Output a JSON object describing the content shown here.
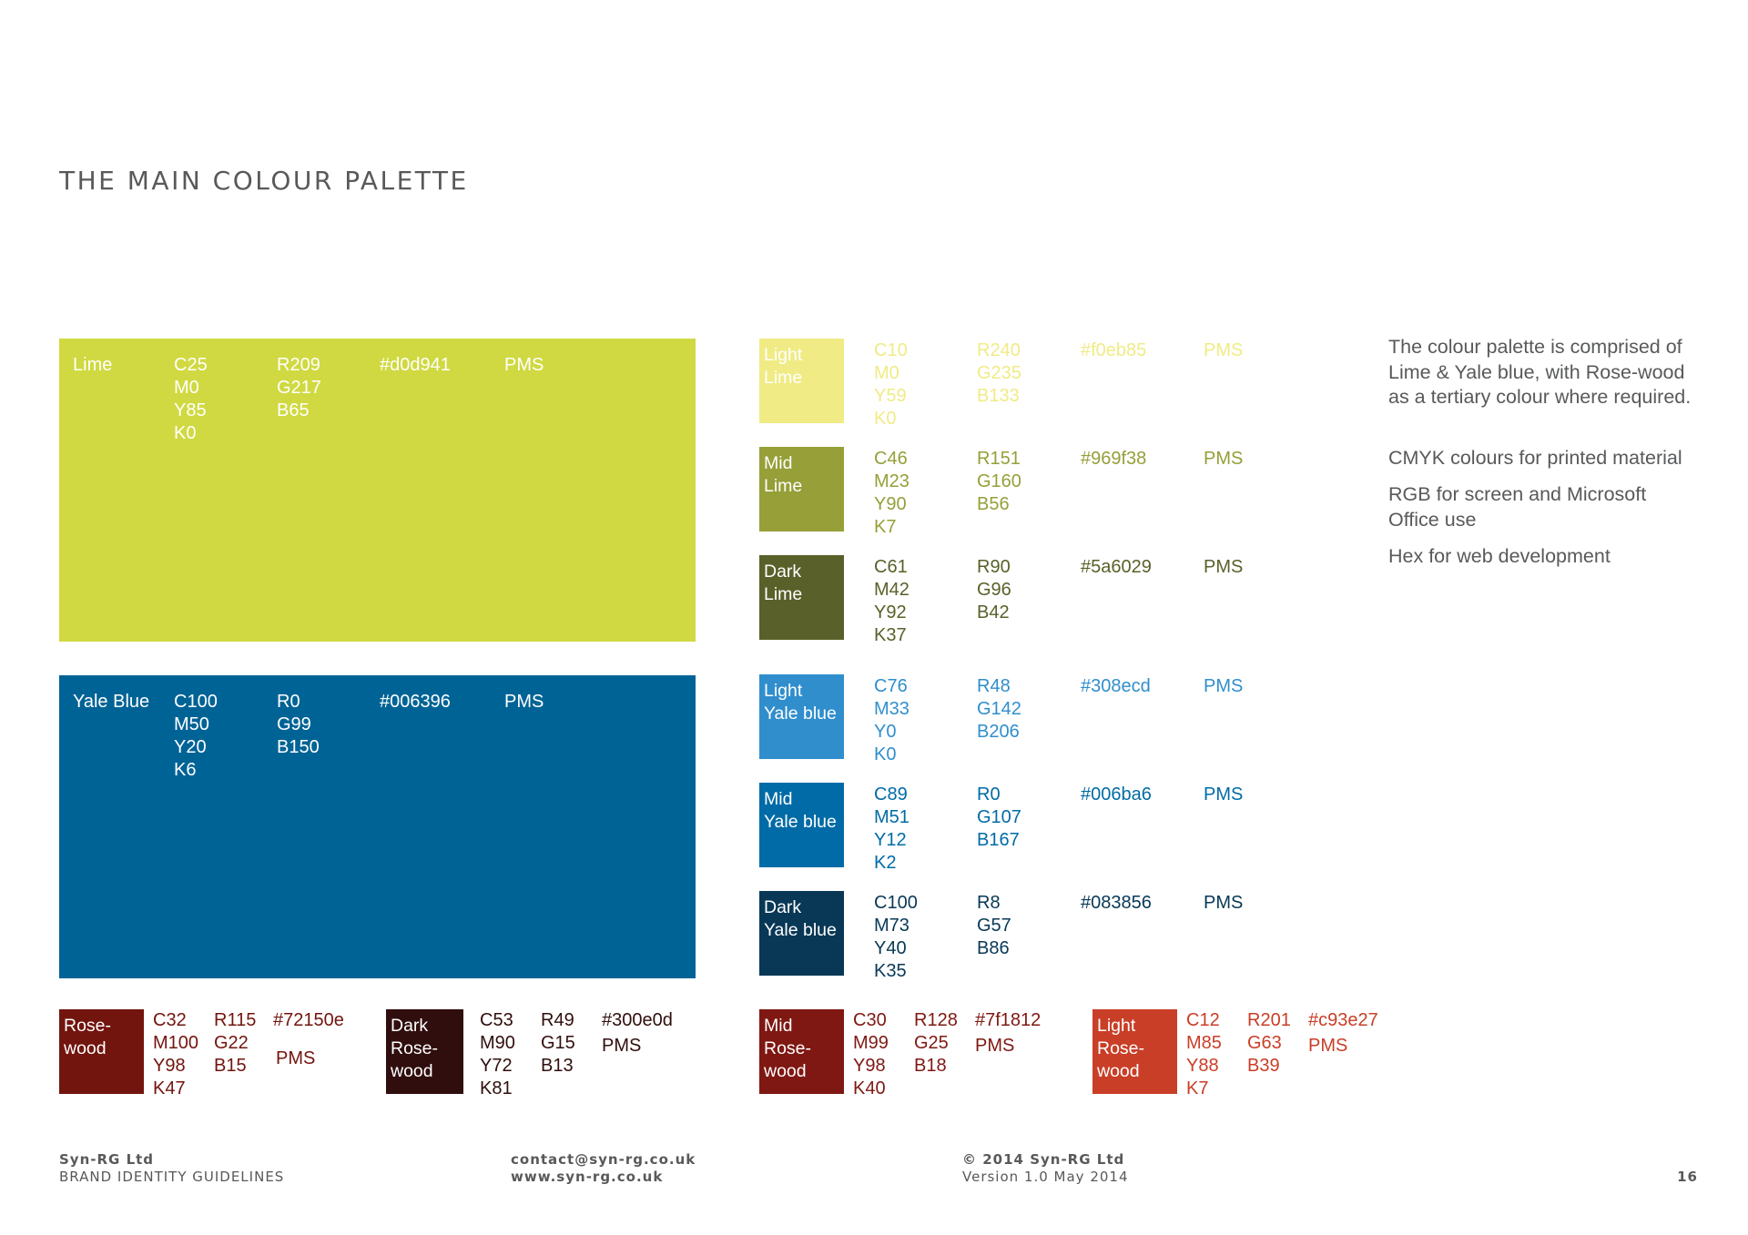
{
  "title": "THE MAIN COLOUR PALETTE",
  "lime": {
    "name": "Lime",
    "cmyk": "C25\nM0\nY85\nK0",
    "rgb": "R209\nG217\nB65",
    "hex": "#d0d941",
    "pms": "PMS",
    "color": "#d0d941"
  },
  "yale": {
    "name": "Yale Blue",
    "cmyk": "C100\nM50\nY20\nK6",
    "rgb": "R0\nG99\nB150",
    "hex": "#006396",
    "pms": "PMS",
    "color": "#006396"
  },
  "tints": [
    {
      "name": "Light\nLime",
      "cmyk": "C10\nM0\nY59\nK0",
      "rgb": "R240\nG235\nB133",
      "hex": "#f0eb85",
      "pms": "PMS",
      "color": "#f0eb85"
    },
    {
      "name": "Mid\nLime",
      "cmyk": "C46\nM23\nY90\nK7",
      "rgb": "R151\nG160\nB56",
      "hex": "#969f38",
      "pms": "PMS",
      "color": "#969f38"
    },
    {
      "name": "Dark\nLime",
      "cmyk": "C61\nM42\nY92\nK37",
      "rgb": "R90\nG96\nB42",
      "hex": "#5a6029",
      "pms": "PMS",
      "color": "#5a6029"
    },
    {
      "name": "Light\nYale blue",
      "cmyk": "C76\nM33\nY0\nK0",
      "rgb": "R48\nG142\nB206",
      "hex": "#308ecd",
      "pms": "PMS",
      "color": "#308ecd"
    },
    {
      "name": "Mid\nYale blue",
      "cmyk": "C89\nM51\nY12\nK2",
      "rgb": "R0\nG107\nB167",
      "hex": "#006ba6",
      "pms": "PMS",
      "color": "#006ba6"
    },
    {
      "name": "Dark\nYale blue",
      "cmyk": "C100\nM73\nY40\nK35",
      "rgb": "R8\nG57\nB86",
      "hex": "#083856",
      "pms": "PMS",
      "color": "#083856"
    }
  ],
  "rosewoods": [
    {
      "name": "Rose-\nwood",
      "cmyk": "C32\nM100\nY98\nK47",
      "rgb": "R115\nG22\nB15",
      "hex": "#72150e",
      "pms": "PMS",
      "color": "#72150e"
    },
    {
      "name": "Dark\nRose-\nwood",
      "cmyk": "C53\nM90\nY72\nK81",
      "rgb": "R49\nG15\nB13",
      "hex": "#300e0d",
      "pms": "PMS",
      "color": "#300e0d"
    },
    {
      "name": "Mid\nRose-\nwood",
      "cmyk": "C30\nM99\nY98\nK40",
      "rgb": "R128\nG25\nB18",
      "hex": "#7f1812",
      "pms": "PMS",
      "color": "#7f1812"
    },
    {
      "name": "Light\nRose-\nwood",
      "cmyk": "C12\nM85\nY88\nK7",
      "rgb": "R201\nG63\nB39",
      "hex": "#c93e27",
      "pms": "PMS",
      "color": "#c93e27"
    }
  ],
  "description": {
    "p1": "The colour palette is comprised of Lime & Yale blue, with Rose-wood as a tertiary colour where required.",
    "p2": "CMYK colours for printed material",
    "p3": "RGB for screen and Microsoft Office use",
    "p4": "Hex for web development"
  },
  "footer": {
    "company": "Syn-RG Ltd",
    "doc": "BRAND IDENTITY GUIDELINES",
    "email": "contact@syn-rg.co.uk",
    "web": "www.syn-rg.co.uk",
    "copyright": "© 2014 Syn-RG Ltd",
    "version": "Version 1.0 May 2014",
    "page": "16"
  }
}
